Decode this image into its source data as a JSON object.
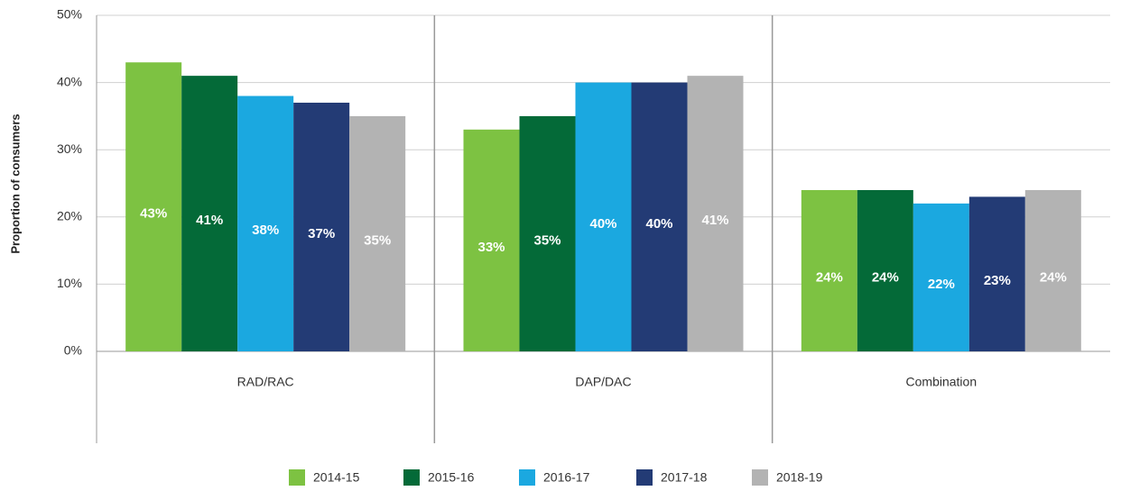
{
  "chart_data": {
    "type": "bar",
    "y_label": "Proportion of consumers",
    "categories": [
      "RAD/RAC",
      "DAP/DAC",
      "Combination"
    ],
    "series": [
      {
        "name": "2014-15",
        "color": "#7dc242",
        "values": [
          43,
          33,
          24
        ],
        "value_labels": [
          "43%",
          "33%",
          "24%"
        ]
      },
      {
        "name": "2015-16",
        "color": "#046a38",
        "values": [
          41,
          35,
          24
        ],
        "value_labels": [
          "41%",
          "35%",
          "24%"
        ]
      },
      {
        "name": "2016-17",
        "color": "#1ba8e0",
        "values": [
          38,
          40,
          22
        ],
        "value_labels": [
          "38%",
          "40%",
          "22%"
        ]
      },
      {
        "name": "2017-18",
        "color": "#233b75",
        "values": [
          37,
          40,
          23
        ],
        "value_labels": [
          "37%",
          "40%",
          "23%"
        ]
      },
      {
        "name": "2018-19",
        "color": "#b3b3b3",
        "values": [
          35,
          41,
          24
        ],
        "value_labels": [
          "35%",
          "41%",
          "24%"
        ]
      }
    ],
    "ylim": [
      0,
      50
    ],
    "yticks": [
      {
        "value": 0,
        "label": "0%"
      },
      {
        "value": 10,
        "label": "10%"
      },
      {
        "value": 20,
        "label": "20%"
      },
      {
        "value": 30,
        "label": "30%"
      },
      {
        "value": 40,
        "label": "40%"
      },
      {
        "value": 50,
        "label": "50%"
      }
    ],
    "grid": true,
    "legend": "bottom"
  }
}
